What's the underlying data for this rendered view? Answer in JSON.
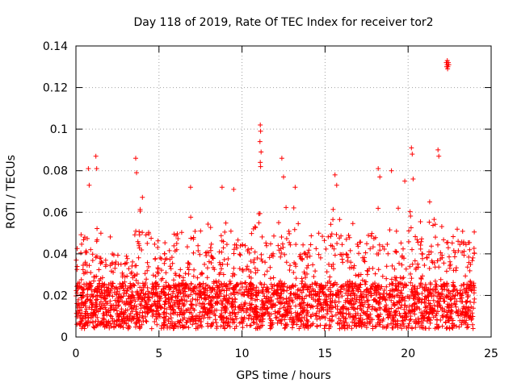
{
  "chart_data": {
    "type": "scatter",
    "title": "Day 118 of 2019, Rate Of TEC Index for receiver tor2",
    "xlabel": "GPS time / hours",
    "ylabel": "ROTI / TECUs",
    "xlim": [
      0,
      25
    ],
    "ylim": [
      0,
      0.14
    ],
    "xticks": [
      0,
      5,
      10,
      15,
      20,
      25
    ],
    "xtick_labels": [
      "0",
      "5",
      "10",
      "15",
      "20",
      "25"
    ],
    "yticks": [
      0,
      0.02,
      0.04,
      0.06,
      0.08,
      0.1,
      0.12,
      0.14
    ],
    "ytick_labels": [
      "0",
      "0.02",
      "0.04",
      "0.06",
      "0.08",
      "0.1",
      "0.12",
      "0.14"
    ],
    "grid": true,
    "marker": "+",
    "color": "#ff0000",
    "series": [
      {
        "name": "tor2",
        "envelope": {
          "x": [
            0,
            0.5,
            1,
            1.5,
            2,
            2.5,
            3,
            3.5,
            4,
            4.5,
            5,
            5.5,
            6,
            6.5,
            7,
            7.5,
            8,
            8.5,
            9,
            9.5,
            10,
            10.5,
            11,
            11.5,
            12,
            12.5,
            13,
            13.5,
            14,
            14.5,
            15,
            15.5,
            16,
            16.5,
            17,
            17.5,
            18,
            18.5,
            19,
            19.5,
            20,
            20.5,
            21,
            21.5,
            22,
            22.5,
            23,
            23.5,
            24
          ],
          "typical_max": [
            0.045,
            0.06,
            0.065,
            0.05,
            0.048,
            0.058,
            0.045,
            0.048,
            0.07,
            0.06,
            0.05,
            0.048,
            0.055,
            0.05,
            0.06,
            0.055,
            0.058,
            0.05,
            0.06,
            0.055,
            0.055,
            0.05,
            0.065,
            0.058,
            0.06,
            0.07,
            0.065,
            0.055,
            0.055,
            0.05,
            0.06,
            0.062,
            0.06,
            0.06,
            0.055,
            0.055,
            0.065,
            0.06,
            0.065,
            0.062,
            0.062,
            0.06,
            0.058,
            0.06,
            0.06,
            0.055,
            0.058,
            0.055,
            0.058
          ]
        },
        "points": [
          {
            "x": 1.2,
            "y": 0.087
          },
          {
            "x": 1.25,
            "y": 0.081
          },
          {
            "x": 0.8,
            "y": 0.073
          },
          {
            "x": 0.75,
            "y": 0.081
          },
          {
            "x": 3.6,
            "y": 0.086
          },
          {
            "x": 3.65,
            "y": 0.079
          },
          {
            "x": 6.9,
            "y": 0.072
          },
          {
            "x": 8.8,
            "y": 0.072
          },
          {
            "x": 9.5,
            "y": 0.071
          },
          {
            "x": 11.1,
            "y": 0.102
          },
          {
            "x": 11.12,
            "y": 0.099
          },
          {
            "x": 11.08,
            "y": 0.094
          },
          {
            "x": 11.15,
            "y": 0.089
          },
          {
            "x": 11.1,
            "y": 0.084
          },
          {
            "x": 11.12,
            "y": 0.082
          },
          {
            "x": 12.4,
            "y": 0.086
          },
          {
            "x": 12.5,
            "y": 0.077
          },
          {
            "x": 13.2,
            "y": 0.072
          },
          {
            "x": 15.6,
            "y": 0.078
          },
          {
            "x": 15.7,
            "y": 0.073
          },
          {
            "x": 18.2,
            "y": 0.081
          },
          {
            "x": 18.3,
            "y": 0.077
          },
          {
            "x": 19.0,
            "y": 0.08
          },
          {
            "x": 19.8,
            "y": 0.075
          },
          {
            "x": 20.2,
            "y": 0.091
          },
          {
            "x": 20.25,
            "y": 0.088
          },
          {
            "x": 20.3,
            "y": 0.076
          },
          {
            "x": 21.8,
            "y": 0.09
          },
          {
            "x": 21.85,
            "y": 0.087
          },
          {
            "x": 21.3,
            "y": 0.065
          },
          {
            "x": 22.3,
            "y": 0.132
          },
          {
            "x": 22.35,
            "y": 0.131
          },
          {
            "x": 22.4,
            "y": 0.13
          },
          {
            "x": 22.45,
            "y": 0.131
          },
          {
            "x": 22.38,
            "y": 0.129
          },
          {
            "x": 22.32,
            "y": 0.13
          },
          {
            "x": 22.42,
            "y": 0.132
          },
          {
            "x": 22.36,
            "y": 0.133
          }
        ]
      }
    ]
  }
}
